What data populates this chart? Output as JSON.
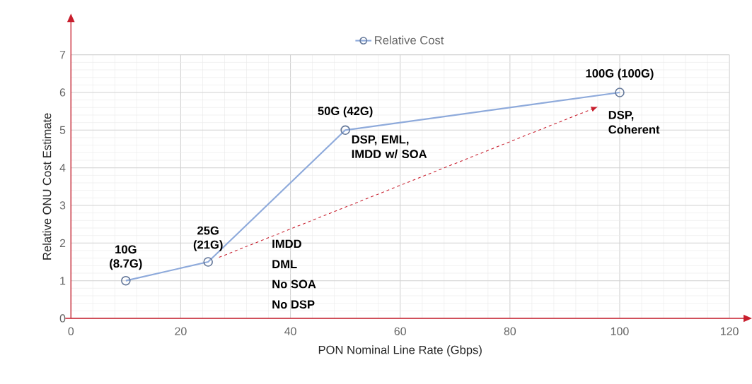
{
  "chart_data": {
    "type": "line",
    "xlabel": "PON Nominal Line Rate (Gbps)",
    "ylabel": "Relative ONU Cost Estimate",
    "x": [
      10,
      25,
      50,
      100
    ],
    "series": [
      {
        "name": "Relative Cost",
        "color": "#8eaadb",
        "values": [
          1,
          1.5,
          5,
          6
        ]
      }
    ],
    "xlim": [
      0,
      120
    ],
    "xticks": [
      0,
      20,
      40,
      60,
      80,
      100,
      120
    ],
    "ylim": [
      0,
      7
    ],
    "yticks": [
      0,
      1,
      2,
      3,
      4,
      5,
      6,
      7
    ],
    "grid": true,
    "legend": "top",
    "marker": "circle",
    "line_style": "solid",
    "annotations": [
      {
        "text": "10G (8.7G)",
        "x": 10,
        "y": 1
      },
      {
        "text": "25G (21G)",
        "x": 25,
        "y": 1.5
      },
      {
        "text": "50G (42G)",
        "x": 50,
        "y": 5
      },
      {
        "text": "100G (100G)",
        "x": 100,
        "y": 6
      },
      "IMDD",
      "DML",
      "No SOA",
      "No DSP",
      "DSP, EML, IMDD w/ SOA",
      "DSP, Coherent"
    ]
  }
}
